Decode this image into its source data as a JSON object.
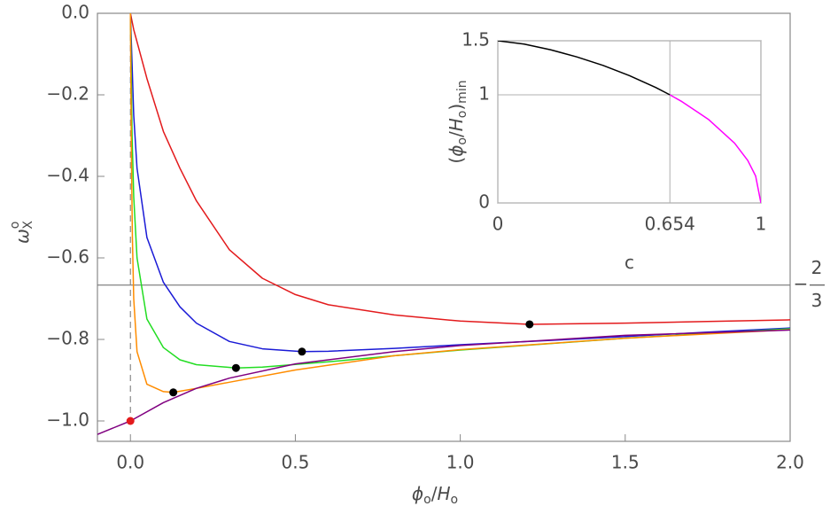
{
  "chart_data": [
    {
      "type": "line",
      "xlabel": [
        {
          "text": "ϕ",
          "italic": true
        },
        {
          "text": "o",
          "shift": "sub"
        },
        {
          "text": "/"
        },
        {
          "text": "H",
          "italic": true
        },
        {
          "text": "o",
          "shift": "sub"
        }
      ],
      "ylabel": [
        {
          "text": "ω",
          "italic": true
        },
        {
          "text": "o",
          "shift": "sup"
        },
        {
          "text": "X",
          "shift": "subback"
        }
      ],
      "xlim": [
        -0.1,
        2.0
      ],
      "ylim": [
        -1.05,
        0
      ],
      "xticks": [
        {
          "value": 0,
          "label": "0.0"
        },
        0.5,
        {
          "value": 1,
          "label": "1.0"
        },
        1.5,
        {
          "value": 2,
          "label": "2.0"
        }
      ],
      "yticks": [
        {
          "value": 0,
          "label": "0.0"
        },
        {
          "value": -0.2,
          "label": "−0.2"
        },
        {
          "value": -0.4,
          "label": "−0.4"
        },
        {
          "value": -0.6,
          "label": "−0.6"
        },
        {
          "value": -0.8,
          "label": "−0.8"
        },
        {
          "value": -1.0,
          "label": "−1.0"
        }
      ],
      "grid": false,
      "series": [
        {
          "color": "#e31a1c",
          "x": [
            0,
            0.01,
            0.02,
            0.05,
            0.1,
            0.15,
            0.2,
            0.3,
            0.4,
            0.5,
            0.6,
            0.8,
            1.0,
            1.21,
            1.5,
            1.75,
            2.0
          ],
          "values": [
            0,
            -0.04,
            -0.07,
            -0.16,
            -0.29,
            -0.38,
            -0.46,
            -0.58,
            -0.65,
            -0.69,
            -0.715,
            -0.74,
            -0.755,
            -0.763,
            -0.76,
            -0.756,
            -0.752
          ]
        },
        {
          "color": "#1a1ad6",
          "x": [
            0,
            0.01,
            0.02,
            0.05,
            0.1,
            0.15,
            0.2,
            0.3,
            0.4,
            0.52,
            0.6,
            0.8,
            1.0,
            1.21,
            1.5,
            1.75,
            2.0
          ],
          "values": [
            0,
            -0.25,
            -0.38,
            -0.55,
            -0.66,
            -0.72,
            -0.76,
            -0.805,
            -0.823,
            -0.83,
            -0.829,
            -0.822,
            -0.813,
            -0.805,
            -0.793,
            -0.782,
            -0.772
          ]
        },
        {
          "color": "#22dd22",
          "x": [
            0,
            0.005,
            0.01,
            0.02,
            0.05,
            0.1,
            0.15,
            0.2,
            0.32,
            0.4,
            0.6,
            0.8,
            1.0,
            1.5,
            2.0
          ],
          "values": [
            0,
            -0.3,
            -0.45,
            -0.6,
            -0.75,
            -0.82,
            -0.85,
            -0.862,
            -0.87,
            -0.868,
            -0.855,
            -0.84,
            -0.826,
            -0.797,
            -0.774
          ]
        },
        {
          "color": "#ff8c00",
          "x": [
            0,
            0.003,
            0.006,
            0.01,
            0.02,
            0.05,
            0.1,
            0.13,
            0.2,
            0.3,
            0.5,
            0.8,
            1.0,
            1.5,
            2.0
          ],
          "values": [
            0,
            -0.35,
            -0.55,
            -0.7,
            -0.83,
            -0.91,
            -0.928,
            -0.93,
            -0.92,
            -0.905,
            -0.875,
            -0.84,
            -0.825,
            -0.797,
            -0.776
          ]
        },
        {
          "color": "#800080",
          "x": [
            -0.1,
            0,
            0.1,
            0.2,
            0.3,
            0.5,
            0.8,
            1.0,
            1.5,
            2.0
          ],
          "values": [
            -1.033,
            -1,
            -0.955,
            -0.92,
            -0.895,
            -0.86,
            -0.83,
            -0.815,
            -0.79,
            -0.777
          ]
        }
      ],
      "points": {
        "x": [
          0,
          0.13,
          0.32,
          0.52,
          1.21
        ],
        "values": [
          -1,
          -0.93,
          -0.87,
          -0.83,
          -0.763
        ],
        "colors": [
          "#e31a1c",
          "#000000",
          "#000000",
          "#000000",
          "#000000"
        ]
      },
      "hline": {
        "value": -0.6667,
        "label_sign": "−",
        "label_num": "2",
        "label_den": "3",
        "color": "#777777"
      },
      "dashed_line": {
        "x": [
          0,
          0
        ],
        "values": [
          0,
          -1
        ],
        "color": "#888888"
      }
    },
    {
      "type": "line",
      "xlabel": [
        {
          "text": "c"
        }
      ],
      "ylabel": [
        {
          "text": "("
        },
        {
          "text": "ϕ",
          "italic": true
        },
        {
          "text": "o",
          "shift": "sub"
        },
        {
          "text": "/"
        },
        {
          "text": "H",
          "italic": true
        },
        {
          "text": "o",
          "shift": "sub"
        },
        {
          "text": ")"
        },
        {
          "text": "min",
          "shift": "sub"
        }
      ],
      "xlim": [
        0,
        1
      ],
      "ylim": [
        0,
        1.5
      ],
      "xticks": [
        0,
        0.654,
        1
      ],
      "yticks": [
        0,
        1,
        1.5
      ],
      "grid": true,
      "series": [
        {
          "color": "#000000",
          "x": [
            0,
            0.1,
            0.2,
            0.3,
            0.4,
            0.5,
            0.6,
            0.654
          ],
          "values": [
            1.5,
            1.469,
            1.417,
            1.351,
            1.272,
            1.178,
            1.068,
            1.0
          ]
        },
        {
          "color": "#ff00ff",
          "x": [
            0.654,
            0.7,
            0.8,
            0.9,
            0.95,
            0.98,
            1.0
          ],
          "values": [
            1.0,
            0.937,
            0.774,
            0.553,
            0.393,
            0.249,
            0
          ]
        }
      ]
    }
  ]
}
